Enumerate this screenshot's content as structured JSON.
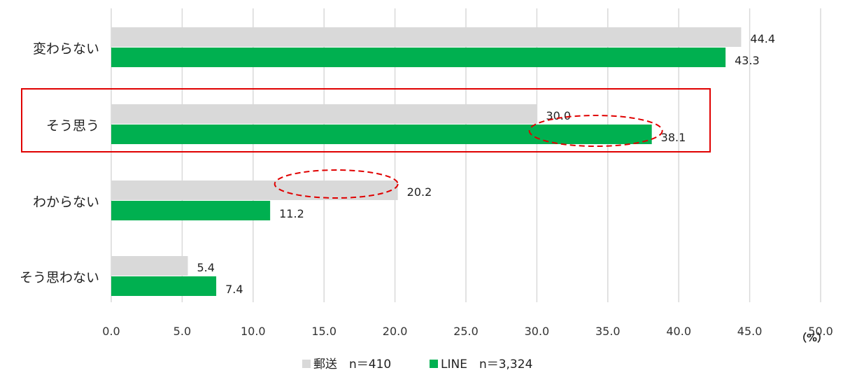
{
  "chart_data": {
    "type": "bar",
    "orientation": "horizontal",
    "categories": [
      "変わらない",
      "そう思う",
      "わからない",
      "そう思わない"
    ],
    "series": [
      {
        "name": "郵送　n＝410",
        "color": "#d9d9d9",
        "values": [
          44.4,
          30.0,
          20.2,
          5.4
        ]
      },
      {
        "name": "LINE　n＝3,324",
        "color": "#00b050",
        "values": [
          43.3,
          38.1,
          11.2,
          7.4
        ]
      }
    ],
    "xlim": [
      0,
      50
    ],
    "xticks": [
      "0.0",
      "5.0",
      "10.0",
      "15.0",
      "20.0",
      "25.0",
      "30.0",
      "35.0",
      "40.0",
      "45.0",
      "50.0"
    ],
    "xunit": "（%）",
    "grid": "vertical",
    "legend_position": "bottom",
    "highlight": {
      "category": "そう思う",
      "box_color": "#e00000",
      "ellipse_color": "#e00000"
    }
  }
}
